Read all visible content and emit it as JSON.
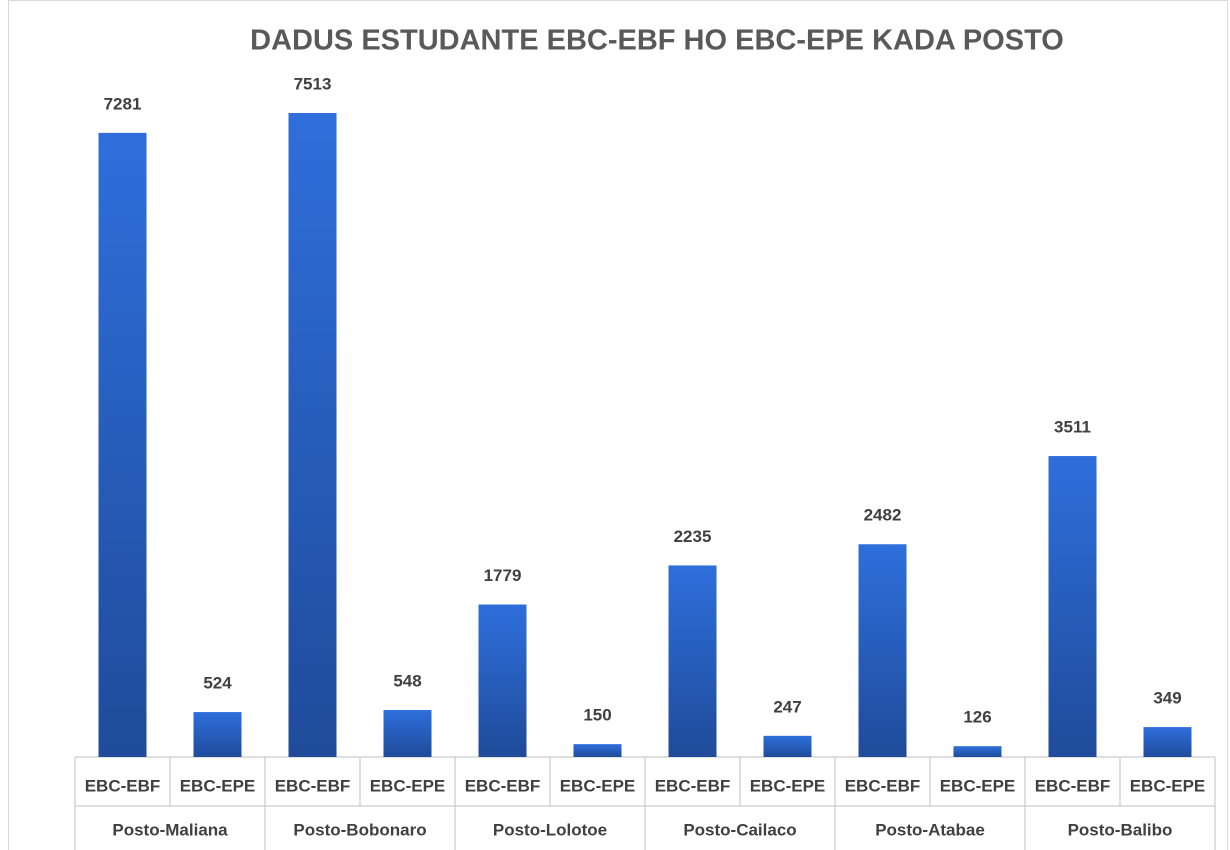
{
  "chart_data": {
    "type": "bar",
    "title": "DADUS ESTUDANTE  EBC-EBF HO EBC-EPE KADA POSTO",
    "color": "#2b66cf",
    "groups": [
      {
        "name": "Posto-Maliana",
        "categories": [
          "EBC-EBF",
          "EBC-EPE"
        ],
        "values": [
          7281,
          524
        ]
      },
      {
        "name": "Posto-Bobonaro",
        "categories": [
          "EBC-EBF",
          "EBC-EPE"
        ],
        "values": [
          7513,
          548
        ]
      },
      {
        "name": "Posto-Lolotoe",
        "categories": [
          "EBC-EBF",
          "EBC-EPE"
        ],
        "values": [
          1779,
          150
        ]
      },
      {
        "name": "Posto-Cailaco",
        "categories": [
          "EBC-EBF",
          "EBC-EPE"
        ],
        "values": [
          2235,
          247
        ]
      },
      {
        "name": "Posto-Atabae",
        "categories": [
          "EBC-EBF",
          "EBC-EPE"
        ],
        "values": [
          2482,
          126
        ]
      },
      {
        "name": "Posto-Balibo",
        "categories": [
          "EBC-EBF",
          "EBC-EPE"
        ],
        "values": [
          3511,
          349
        ]
      }
    ]
  }
}
